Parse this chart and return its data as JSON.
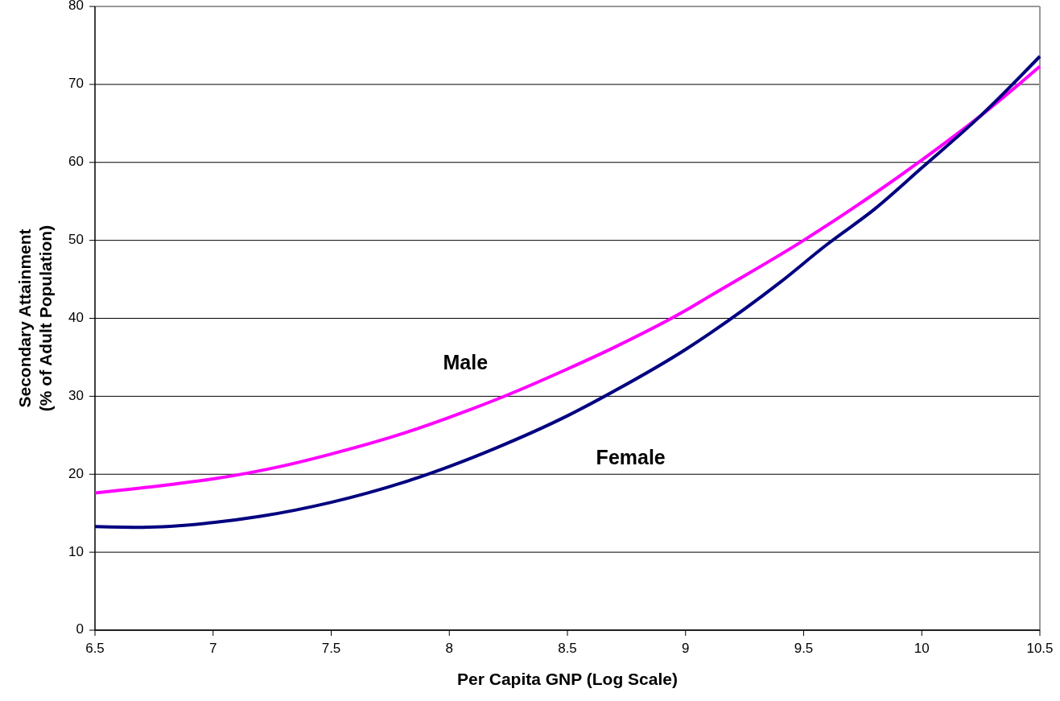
{
  "chart_data": {
    "type": "line",
    "xlabel": "Per Capita GNP (Log Scale)",
    "ylabel": "Secondary Attainment\n(% of Adult Population)",
    "xlim": [
      6.5,
      10.5
    ],
    "xticks": [
      6.5,
      7,
      7.5,
      8,
      8.5,
      9,
      9.5,
      10,
      10.5
    ],
    "ylim": [
      0,
      80
    ],
    "yticks": [
      0,
      10,
      20,
      30,
      40,
      50,
      60,
      70,
      80
    ],
    "grid": "y",
    "marker": "none",
    "line_style": "solid",
    "series": [
      {
        "name": "Male",
        "color": "#ff00ff",
        "x": [
          6.5,
          6.8,
          7.0,
          7.3,
          7.5,
          7.8,
          8.0,
          8.2,
          8.5,
          8.7,
          9.0,
          9.1,
          9.5,
          9.8,
          10.0,
          10.25,
          10.5
        ],
        "values": [
          17.6,
          18.6,
          19.4,
          21.1,
          22.6,
          25.2,
          27.3,
          29.6,
          33.5,
          36.3,
          41.0,
          42.8,
          50.0,
          56.0,
          60.3,
          66.0,
          72.3
        ]
      },
      {
        "name": "Female",
        "color": "#000080",
        "x": [
          6.5,
          6.7,
          7.0,
          7.2,
          7.5,
          7.8,
          8.0,
          8.2,
          8.5,
          8.7,
          9.0,
          9.1,
          9.4,
          9.6,
          9.8,
          10.0,
          10.25,
          10.5
        ],
        "values": [
          13.3,
          13.2,
          13.8,
          14.6,
          16.4,
          18.9,
          21.0,
          23.4,
          27.5,
          30.7,
          36.0,
          38.0,
          44.6,
          49.5,
          54.0,
          59.3,
          66.0,
          73.6
        ]
      }
    ]
  }
}
